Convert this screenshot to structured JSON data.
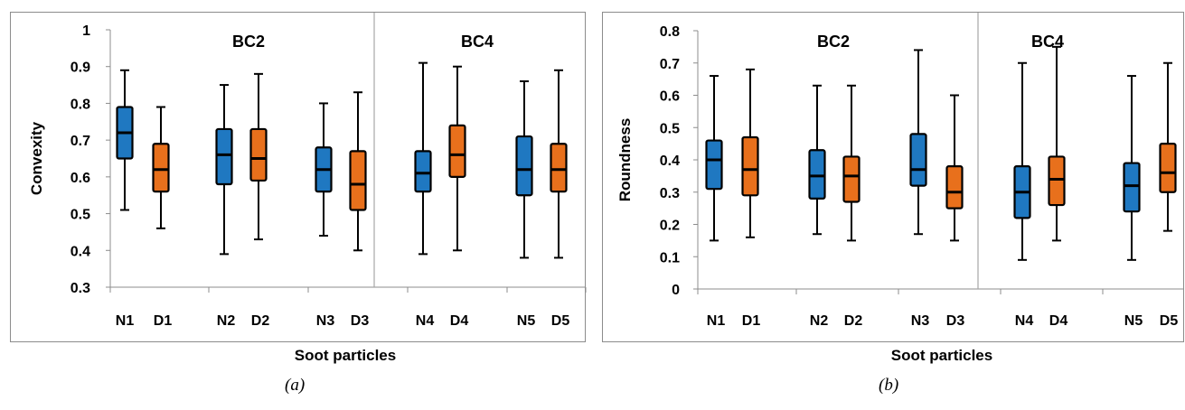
{
  "captions": {
    "a": "(a)",
    "b": "(b)"
  },
  "colors": {
    "N": "#1f78c1",
    "D": "#e8701c",
    "whisker": "#000000",
    "divider": "#a6a6a6",
    "axis": "#8c8c8c"
  },
  "chart_data": [
    {
      "type": "box",
      "xlabel": "Soot particles",
      "ylabel": "Convexity",
      "ylim": [
        0.3,
        1.0
      ],
      "yticks": [
        "0.3",
        "0.4",
        "0.5",
        "0.6",
        "0.7",
        "0.8",
        "0.9",
        "1"
      ],
      "category_labels": [
        "N1",
        "D1",
        "N2",
        "D2",
        "N3",
        "D3",
        "N4",
        "D4",
        "N5",
        "D5"
      ],
      "groups": [
        {
          "label": "BC2"
        },
        {
          "label": "BC4"
        }
      ],
      "boxes": [
        {
          "label": "N1",
          "series": "N",
          "min": 0.51,
          "q1": 0.65,
          "median": 0.72,
          "q3": 0.79,
          "max": 0.89
        },
        {
          "label": "D1",
          "series": "D",
          "min": 0.46,
          "q1": 0.56,
          "median": 0.62,
          "q3": 0.69,
          "max": 0.79
        },
        {
          "label": "N2",
          "series": "N",
          "min": 0.39,
          "q1": 0.58,
          "median": 0.66,
          "q3": 0.73,
          "max": 0.85
        },
        {
          "label": "D2",
          "series": "D",
          "min": 0.43,
          "q1": 0.59,
          "median": 0.65,
          "q3": 0.73,
          "max": 0.88
        },
        {
          "label": "N3",
          "series": "N",
          "min": 0.44,
          "q1": 0.56,
          "median": 0.62,
          "q3": 0.68,
          "max": 0.8
        },
        {
          "label": "D3",
          "series": "D",
          "min": 0.4,
          "q1": 0.51,
          "median": 0.58,
          "q3": 0.67,
          "max": 0.83
        },
        {
          "label": "N4",
          "series": "N",
          "min": 0.39,
          "q1": 0.56,
          "median": 0.61,
          "q3": 0.67,
          "max": 0.91
        },
        {
          "label": "D4",
          "series": "D",
          "min": 0.4,
          "q1": 0.6,
          "median": 0.66,
          "q3": 0.74,
          "max": 0.9
        },
        {
          "label": "N5",
          "series": "N",
          "min": 0.38,
          "q1": 0.55,
          "median": 0.62,
          "q3": 0.71,
          "max": 0.86
        },
        {
          "label": "D5",
          "series": "D",
          "min": 0.38,
          "q1": 0.56,
          "median": 0.62,
          "q3": 0.69,
          "max": 0.89
        }
      ]
    },
    {
      "type": "box",
      "xlabel": "Soot particles",
      "ylabel": "Roundness",
      "ylim": [
        0,
        0.8
      ],
      "yticks": [
        "0",
        "0.1",
        "0.2",
        "0.3",
        "0.4",
        "0.5",
        "0.6",
        "0.7",
        "0.8"
      ],
      "category_labels": [
        "N1",
        "D1",
        "N2",
        "D2",
        "N3",
        "D3",
        "N4",
        "D4",
        "N5",
        "D5"
      ],
      "groups": [
        {
          "label": "BC2"
        },
        {
          "label": "BC4"
        }
      ],
      "boxes": [
        {
          "label": "N1",
          "series": "N",
          "min": 0.15,
          "q1": 0.31,
          "median": 0.4,
          "q3": 0.46,
          "max": 0.66
        },
        {
          "label": "D1",
          "series": "D",
          "min": 0.16,
          "q1": 0.29,
          "median": 0.37,
          "q3": 0.47,
          "max": 0.68
        },
        {
          "label": "N2",
          "series": "N",
          "min": 0.17,
          "q1": 0.28,
          "median": 0.35,
          "q3": 0.43,
          "max": 0.63
        },
        {
          "label": "D2",
          "series": "D",
          "min": 0.15,
          "q1": 0.27,
          "median": 0.35,
          "q3": 0.41,
          "max": 0.63
        },
        {
          "label": "N3",
          "series": "N",
          "min": 0.17,
          "q1": 0.32,
          "median": 0.37,
          "q3": 0.48,
          "max": 0.74
        },
        {
          "label": "D3",
          "series": "D",
          "min": 0.15,
          "q1": 0.25,
          "median": 0.3,
          "q3": 0.38,
          "max": 0.6
        },
        {
          "label": "N4",
          "series": "N",
          "min": 0.09,
          "q1": 0.22,
          "median": 0.3,
          "q3": 0.38,
          "max": 0.7
        },
        {
          "label": "D4",
          "series": "D",
          "min": 0.15,
          "q1": 0.26,
          "median": 0.34,
          "q3": 0.41,
          "max": 0.75
        },
        {
          "label": "N5",
          "series": "N",
          "min": 0.09,
          "q1": 0.24,
          "median": 0.32,
          "q3": 0.39,
          "max": 0.66
        },
        {
          "label": "D5",
          "series": "D",
          "min": 0.18,
          "q1": 0.3,
          "median": 0.36,
          "q3": 0.45,
          "max": 0.7
        }
      ]
    }
  ]
}
